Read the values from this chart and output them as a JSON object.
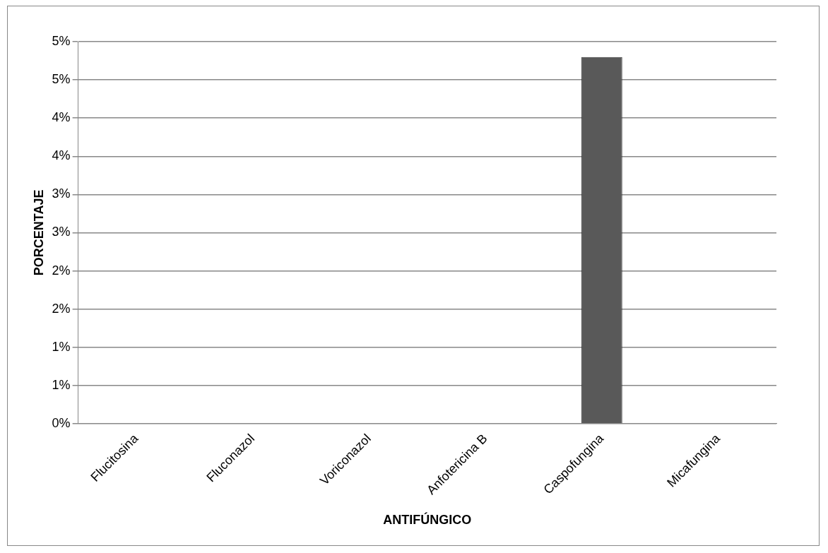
{
  "chart_data": {
    "type": "bar",
    "xlabel": "ANTIFÚNGICO",
    "ylabel": "PORCENTAJE",
    "categories": [
      "Flucitosina",
      "Fluconazol",
      "Voriconazol",
      "Anfotericina B",
      "Caspofungina",
      "Micafungina"
    ],
    "values": [
      0,
      0,
      0,
      0,
      4.8,
      0
    ],
    "color": "#595959",
    "ylim": [
      0,
      5
    ],
    "yticks": [
      {
        "value": 0,
        "label": "0%"
      },
      {
        "value": 0.5,
        "label": "1%"
      },
      {
        "value": 1,
        "label": "1%"
      },
      {
        "value": 1.5,
        "label": "2%"
      },
      {
        "value": 2,
        "label": "2%"
      },
      {
        "value": 2.5,
        "label": "3%"
      },
      {
        "value": 3,
        "label": "3%"
      },
      {
        "value": 3.5,
        "label": "4%"
      },
      {
        "value": 4,
        "label": "4%"
      },
      {
        "value": 4.5,
        "label": "5%"
      },
      {
        "value": 5,
        "label": "5%"
      }
    ],
    "grid": "y",
    "legend": false
  }
}
